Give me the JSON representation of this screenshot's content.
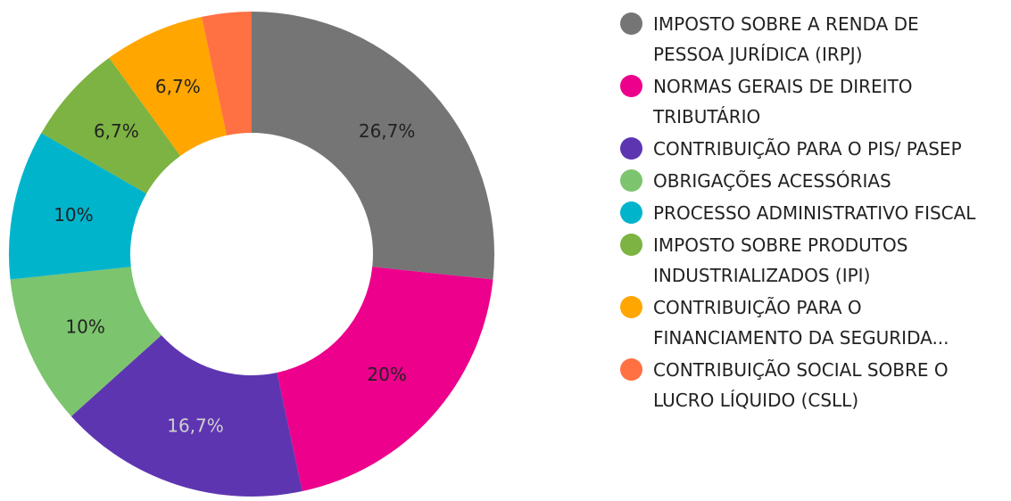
{
  "chart_data": {
    "type": "donut",
    "categories": [
      "IMPOSTO SOBRE A RENDA DE PESSOA JURÍDICA (IRPJ)",
      "NORMAS GERAIS DE DIREITO TRIBUTÁRIO",
      "CONTRIBUIÇÃO PARA O PIS/ PASEP",
      "OBRIGAÇÕES ACESSÓRIAS",
      "PROCESSO ADMINISTRATIVO FISCAL",
      "IMPOSTO SOBRE PRODUTOS INDUSTRIALIZADOS (IPI)",
      "CONTRIBUIÇÃO PARA O FINANCIAMENTO DA SEGURIDA...",
      "CONTRIBUIÇÃO SOCIAL SOBRE O LUCRO LÍQUIDO (CSLL)"
    ],
    "values": [
      26.7,
      20,
      16.7,
      10,
      10,
      6.7,
      6.7,
      3.3
    ],
    "value_labels": [
      "26,7%",
      "20%",
      "16,7%",
      "10%",
      "10%",
      "6,7%",
      "6,7%",
      null
    ],
    "colors": [
      "#757575",
      "#ec008c",
      "#5e35b1",
      "#7cc46d",
      "#00b4cc",
      "#7cb342",
      "#ffa600",
      "#ff7043"
    ],
    "legend": "right"
  }
}
